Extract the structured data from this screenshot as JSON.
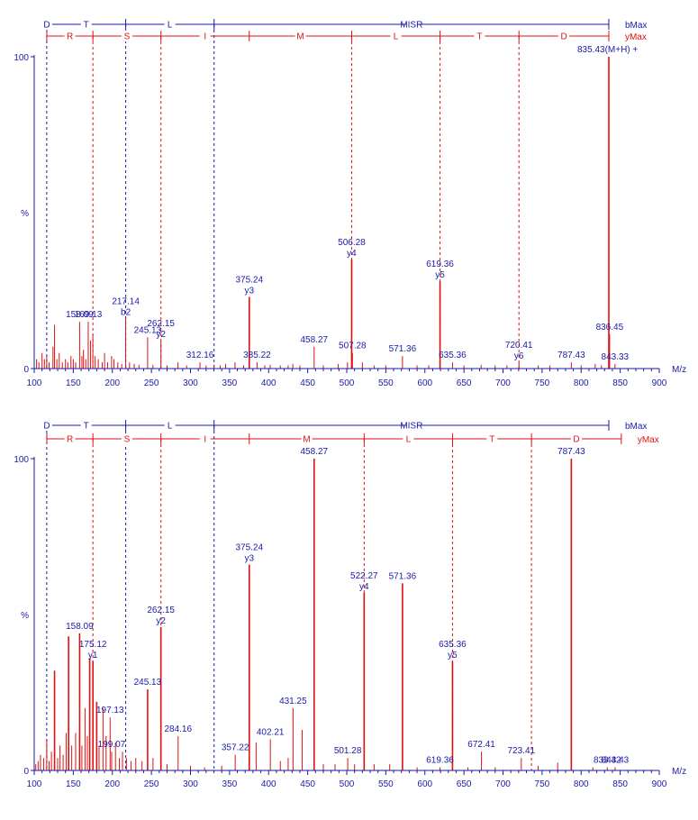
{
  "colors": {
    "b_series": "#1a1aa8",
    "y_series": "#e01010",
    "axis": "#1a1aa8",
    "text": "#1a1aa8"
  },
  "chart_data": [
    {
      "type": "bar",
      "x_axis_label": "M/z",
      "y_axis_label": "%",
      "x_range": [
        100,
        900
      ],
      "y_range": [
        0,
        100
      ],
      "x_ticks": [
        "100",
        "150",
        "200",
        "250",
        "300",
        "350",
        "400",
        "450",
        "500",
        "550",
        "600",
        "650",
        "700",
        "750",
        "800",
        "850",
        "900"
      ],
      "y_ticks": [
        "0",
        "100"
      ],
      "b_ladder": {
        "name": "bMax",
        "boundaries": [
          116.0,
          217.1,
          330.2,
          835.4
        ],
        "letters": [
          "D",
          "T",
          "L",
          "MISR"
        ],
        "dashed_positions": [
          116.0,
          217.1,
          330.2
        ]
      },
      "y_ladder": {
        "name": "yMax",
        "boundaries": [
          175.1,
          262.2,
          375.2,
          506.3,
          619.4,
          720.4,
          835.4
        ],
        "letters": [
          "R",
          "S",
          "I",
          "M",
          "L",
          "T",
          "D"
        ],
        "dashed_positions": [
          175.1,
          262.2,
          506.3,
          619.4,
          720.4
        ]
      },
      "peaks": [
        {
          "mz": 103,
          "i": 3
        },
        {
          "mz": 106,
          "i": 2
        },
        {
          "mz": 110,
          "i": 5
        },
        {
          "mz": 113,
          "i": 3
        },
        {
          "mz": 116,
          "i": 4
        },
        {
          "mz": 119,
          "i": 2
        },
        {
          "mz": 124,
          "i": 7
        },
        {
          "mz": 126,
          "i": 14
        },
        {
          "mz": 129,
          "i": 3
        },
        {
          "mz": 132,
          "i": 5
        },
        {
          "mz": 136,
          "i": 2
        },
        {
          "mz": 140,
          "i": 3
        },
        {
          "mz": 143,
          "i": 2
        },
        {
          "mz": 147,
          "i": 4
        },
        {
          "mz": 150,
          "i": 3
        },
        {
          "mz": 153,
          "i": 2
        },
        {
          "mz": 158.09,
          "i": 15
        },
        {
          "mz": 161,
          "i": 4
        },
        {
          "mz": 163,
          "i": 6
        },
        {
          "mz": 166,
          "i": 3
        },
        {
          "mz": 169.13,
          "i": 15
        },
        {
          "mz": 172,
          "i": 9
        },
        {
          "mz": 175,
          "i": 11
        },
        {
          "mz": 178,
          "i": 4
        },
        {
          "mz": 182,
          "i": 3
        },
        {
          "mz": 187,
          "i": 2
        },
        {
          "mz": 190,
          "i": 5
        },
        {
          "mz": 194,
          "i": 2
        },
        {
          "mz": 199,
          "i": 4
        },
        {
          "mz": 202,
          "i": 3
        },
        {
          "mz": 207,
          "i": 2
        },
        {
          "mz": 212,
          "i": 1.5
        },
        {
          "mz": 217.14,
          "i": 16
        },
        {
          "mz": 222,
          "i": 2
        },
        {
          "mz": 228,
          "i": 1.5
        },
        {
          "mz": 234,
          "i": 1.2
        },
        {
          "mz": 245.13,
          "i": 10
        },
        {
          "mz": 252,
          "i": 1.2
        },
        {
          "mz": 262.15,
          "i": 9
        },
        {
          "mz": 270,
          "i": 1
        },
        {
          "mz": 284,
          "i": 2
        },
        {
          "mz": 295,
          "i": 1
        },
        {
          "mz": 312.16,
          "i": 2
        },
        {
          "mz": 320,
          "i": 1
        },
        {
          "mz": 330,
          "i": 1.2
        },
        {
          "mz": 338,
          "i": 1
        },
        {
          "mz": 345,
          "i": 1.5
        },
        {
          "mz": 357,
          "i": 2
        },
        {
          "mz": 368,
          "i": 1
        },
        {
          "mz": 375.24,
          "i": 23
        },
        {
          "mz": 385.22,
          "i": 2
        },
        {
          "mz": 395,
          "i": 1
        },
        {
          "mz": 402,
          "i": 1.2
        },
        {
          "mz": 415,
          "i": 1
        },
        {
          "mz": 425,
          "i": 1
        },
        {
          "mz": 431,
          "i": 1.5
        },
        {
          "mz": 440,
          "i": 1
        },
        {
          "mz": 458.27,
          "i": 7
        },
        {
          "mz": 470,
          "i": 1
        },
        {
          "mz": 489,
          "i": 1.5
        },
        {
          "mz": 501,
          "i": 2
        },
        {
          "mz": 506.28,
          "i": 35
        },
        {
          "mz": 507.28,
          "i": 5
        },
        {
          "mz": 520,
          "i": 2
        },
        {
          "mz": 535,
          "i": 1
        },
        {
          "mz": 550,
          "i": 1
        },
        {
          "mz": 571.36,
          "i": 4
        },
        {
          "mz": 590,
          "i": 1
        },
        {
          "mz": 605,
          "i": 1
        },
        {
          "mz": 619.36,
          "i": 28
        },
        {
          "mz": 635.36,
          "i": 2
        },
        {
          "mz": 650,
          "i": 1
        },
        {
          "mz": 672,
          "i": 1.2
        },
        {
          "mz": 690,
          "i": 1
        },
        {
          "mz": 705,
          "i": 1
        },
        {
          "mz": 720.41,
          "i": 2
        },
        {
          "mz": 745,
          "i": 1
        },
        {
          "mz": 760,
          "i": 1
        },
        {
          "mz": 787.43,
          "i": 2
        },
        {
          "mz": 800,
          "i": 1
        },
        {
          "mz": 818,
          "i": 1.5
        },
        {
          "mz": 826,
          "i": 1
        },
        {
          "mz": 835.43,
          "i": 100
        },
        {
          "mz": 836.45,
          "i": 11
        },
        {
          "mz": 843.33,
          "i": 1.5
        }
      ],
      "labels": [
        {
          "mz": 158.09,
          "i": 15,
          "text": "158.09"
        },
        {
          "mz": 169.13,
          "i": 15,
          "text": "169.13"
        },
        {
          "mz": 217.14,
          "i": 16,
          "text": "217.14",
          "ion": "b2"
        },
        {
          "mz": 245.13,
          "i": 10,
          "text": "245.13"
        },
        {
          "mz": 262.15,
          "i": 9,
          "text": "262.15",
          "ion": "y2"
        },
        {
          "mz": 312.16,
          "i": 2,
          "text": "312.16"
        },
        {
          "mz": 375.24,
          "i": 23,
          "text": "375.24",
          "ion": "y3"
        },
        {
          "mz": 385.22,
          "i": 2,
          "text": "385.22"
        },
        {
          "mz": 458.27,
          "i": 7,
          "text": "458.27"
        },
        {
          "mz": 506.28,
          "i": 35,
          "text": "506.28",
          "ion": "y4"
        },
        {
          "mz": 507.28,
          "i": 5,
          "text": "507.28"
        },
        {
          "mz": 571.36,
          "i": 4,
          "text": "571.36"
        },
        {
          "mz": 619.36,
          "i": 28,
          "text": "619.36",
          "ion": "y5"
        },
        {
          "mz": 635.36,
          "i": 2,
          "text": "635.36"
        },
        {
          "mz": 720.41,
          "i": 2,
          "text": "720.41",
          "ion": "y6"
        },
        {
          "mz": 787.43,
          "i": 2,
          "text": "787.43"
        },
        {
          "mz": 835.43,
          "i": 100,
          "text": "835.43(M+H) +"
        },
        {
          "mz": 836.45,
          "i": 11,
          "text": "836.45"
        },
        {
          "mz": 843.33,
          "i": 1.5,
          "text": "843.33"
        }
      ]
    },
    {
      "type": "bar",
      "x_axis_label": "M/z",
      "y_axis_label": "%",
      "x_range": [
        100,
        900
      ],
      "y_range": [
        0,
        100
      ],
      "x_ticks": [
        "100",
        "150",
        "200",
        "250",
        "300",
        "350",
        "400",
        "450",
        "500",
        "550",
        "600",
        "650",
        "700",
        "750",
        "800",
        "850",
        "900"
      ],
      "y_ticks": [
        "0",
        "100"
      ],
      "b_ladder": {
        "name": "bMax",
        "boundaries": [
          116.0,
          217.1,
          330.2,
          835.4
        ],
        "letters": [
          "D",
          "T",
          "L",
          "MISR"
        ],
        "dashed_positions": [
          116.0,
          217.1,
          330.2
        ]
      },
      "y_ladder": {
        "name": "yMax",
        "boundaries": [
          175.1,
          262.2,
          375.2,
          522.3,
          635.4,
          736.4,
          851.4
        ],
        "letters": [
          "R",
          "S",
          "I",
          "M",
          "L",
          "T",
          "D"
        ],
        "dashed_positions": [
          175.1,
          262.2,
          522.3,
          635.4,
          736.4
        ]
      },
      "peaks": [
        {
          "mz": 102,
          "i": 2
        },
        {
          "mz": 105,
          "i": 3
        },
        {
          "mz": 108,
          "i": 5
        },
        {
          "mz": 112,
          "i": 4
        },
        {
          "mz": 116,
          "i": 10
        },
        {
          "mz": 119,
          "i": 3
        },
        {
          "mz": 122,
          "i": 6
        },
        {
          "mz": 126,
          "i": 32
        },
        {
          "mz": 130,
          "i": 4
        },
        {
          "mz": 133,
          "i": 8
        },
        {
          "mz": 137,
          "i": 5
        },
        {
          "mz": 141,
          "i": 12
        },
        {
          "mz": 144,
          "i": 43
        },
        {
          "mz": 148,
          "i": 8
        },
        {
          "mz": 153,
          "i": 12
        },
        {
          "mz": 158.09,
          "i": 44
        },
        {
          "mz": 161,
          "i": 8
        },
        {
          "mz": 165,
          "i": 20
        },
        {
          "mz": 168,
          "i": 11
        },
        {
          "mz": 171,
          "i": 36
        },
        {
          "mz": 175.12,
          "i": 35
        },
        {
          "mz": 180,
          "i": 22
        },
        {
          "mz": 183,
          "i": 8
        },
        {
          "mz": 188,
          "i": 20
        },
        {
          "mz": 192,
          "i": 11
        },
        {
          "mz": 197.13,
          "i": 17
        },
        {
          "mz": 199.07,
          "i": 6
        },
        {
          "mz": 204,
          "i": 9
        },
        {
          "mz": 209,
          "i": 4
        },
        {
          "mz": 213,
          "i": 6
        },
        {
          "mz": 218,
          "i": 4
        },
        {
          "mz": 224,
          "i": 3
        },
        {
          "mz": 230,
          "i": 4
        },
        {
          "mz": 238,
          "i": 3
        },
        {
          "mz": 245.13,
          "i": 26
        },
        {
          "mz": 252,
          "i": 4
        },
        {
          "mz": 262.15,
          "i": 46
        },
        {
          "mz": 270,
          "i": 2
        },
        {
          "mz": 284.16,
          "i": 11
        },
        {
          "mz": 300,
          "i": 1.5
        },
        {
          "mz": 318,
          "i": 1
        },
        {
          "mz": 340,
          "i": 1.5
        },
        {
          "mz": 357.22,
          "i": 5
        },
        {
          "mz": 375.24,
          "i": 66
        },
        {
          "mz": 384,
          "i": 9
        },
        {
          "mz": 402.21,
          "i": 10
        },
        {
          "mz": 415,
          "i": 3
        },
        {
          "mz": 425,
          "i": 4
        },
        {
          "mz": 431.25,
          "i": 20
        },
        {
          "mz": 443,
          "i": 13
        },
        {
          "mz": 458.27,
          "i": 100
        },
        {
          "mz": 470,
          "i": 2
        },
        {
          "mz": 485,
          "i": 2
        },
        {
          "mz": 501.28,
          "i": 4
        },
        {
          "mz": 510,
          "i": 2
        },
        {
          "mz": 522.27,
          "i": 57
        },
        {
          "mz": 535,
          "i": 2
        },
        {
          "mz": 555,
          "i": 2
        },
        {
          "mz": 571.36,
          "i": 60
        },
        {
          "mz": 590,
          "i": 1
        },
        {
          "mz": 619.36,
          "i": 1
        },
        {
          "mz": 635.36,
          "i": 35
        },
        {
          "mz": 655,
          "i": 1
        },
        {
          "mz": 672.41,
          "i": 6
        },
        {
          "mz": 690,
          "i": 1
        },
        {
          "mz": 723.41,
          "i": 4
        },
        {
          "mz": 745,
          "i": 1.5
        },
        {
          "mz": 770,
          "i": 2.5
        },
        {
          "mz": 787.43,
          "i": 100
        },
        {
          "mz": 815,
          "i": 1
        },
        {
          "mz": 833.42,
          "i": 1
        },
        {
          "mz": 843.43,
          "i": 1
        }
      ],
      "labels": [
        {
          "mz": 158.09,
          "i": 44,
          "text": "158.09"
        },
        {
          "mz": 175.12,
          "i": 35,
          "text": "175.12",
          "ion": "y1"
        },
        {
          "mz": 197.13,
          "i": 17,
          "text": "197.13"
        },
        {
          "mz": 199.07,
          "i": 6,
          "text": "199.07"
        },
        {
          "mz": 245.13,
          "i": 26,
          "text": "245.13"
        },
        {
          "mz": 262.15,
          "i": 46,
          "text": "262.15",
          "ion": "y2"
        },
        {
          "mz": 284.16,
          "i": 11,
          "text": "284.16"
        },
        {
          "mz": 357.22,
          "i": 5,
          "text": "357.22"
        },
        {
          "mz": 375.24,
          "i": 66,
          "text": "375.24",
          "ion": "y3"
        },
        {
          "mz": 402.21,
          "i": 10,
          "text": "402.21"
        },
        {
          "mz": 431.25,
          "i": 20,
          "text": "431.25"
        },
        {
          "mz": 458.27,
          "i": 100,
          "text": "458.27"
        },
        {
          "mz": 501.28,
          "i": 4,
          "text": "501.28"
        },
        {
          "mz": 522.27,
          "i": 57,
          "text": "522.27",
          "ion": "y4"
        },
        {
          "mz": 571.36,
          "i": 60,
          "text": "571.36"
        },
        {
          "mz": 619.36,
          "i": 1,
          "text": "619.36"
        },
        {
          "mz": 635.36,
          "i": 35,
          "text": "635.36",
          "ion": "y5"
        },
        {
          "mz": 672.41,
          "i": 6,
          "text": "672.41"
        },
        {
          "mz": 723.41,
          "i": 4,
          "text": "723.41"
        },
        {
          "mz": 787.43,
          "i": 100,
          "text": "787.43"
        },
        {
          "mz": 833.42,
          "i": 1,
          "text": "833.42"
        },
        {
          "mz": 843.43,
          "i": 1,
          "text": "843.43"
        }
      ]
    }
  ]
}
